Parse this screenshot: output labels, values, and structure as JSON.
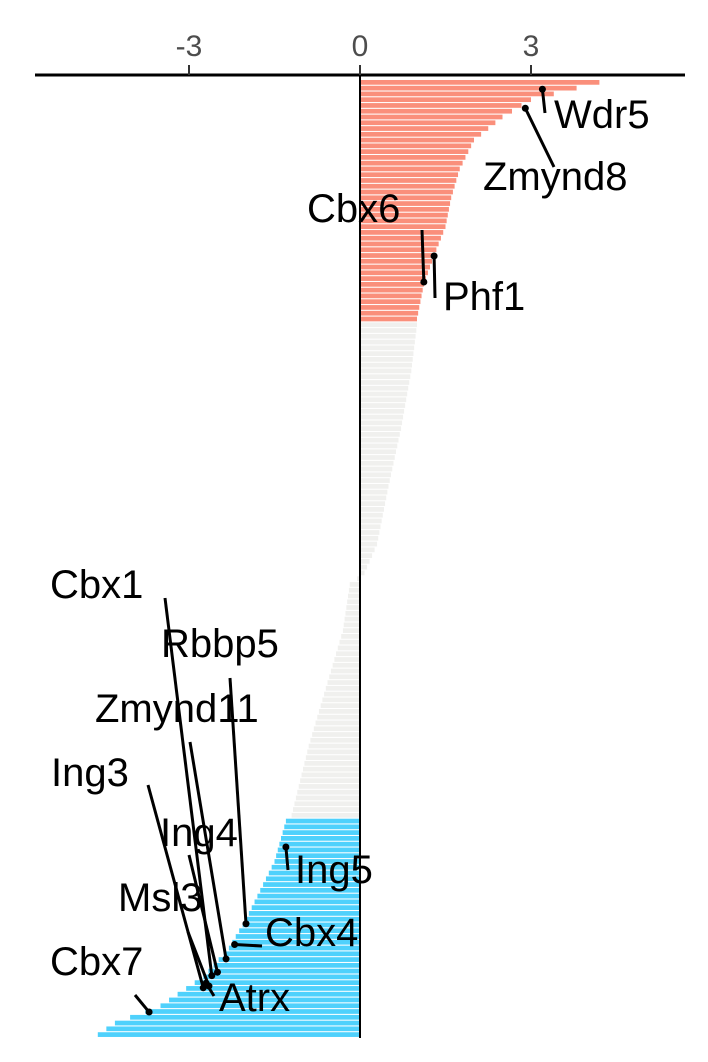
{
  "chart_data": {
    "type": "bar",
    "orientation": "horizontal",
    "xlim": [
      -5.8,
      5.7
    ],
    "x_ticks": [
      -3,
      0,
      3
    ],
    "x_tick_labels": [
      "-3",
      "0",
      "3"
    ],
    "bar_count": 166,
    "groups": [
      {
        "range": [
          0,
          42
        ],
        "color": "#FA8F7B"
      },
      {
        "range": [
          42,
          128
        ],
        "color": "#F0F0EE"
      },
      {
        "range": [
          128,
          166
        ],
        "color": "#4FD1FC"
      }
    ],
    "curve": [
      [
        0,
        4.2
      ],
      [
        3,
        3.0
      ],
      [
        6,
        2.5
      ],
      [
        10,
        2.0
      ],
      [
        15,
        1.75
      ],
      [
        20,
        1.6
      ],
      [
        25,
        1.5
      ],
      [
        30,
        1.3
      ],
      [
        35,
        1.12
      ],
      [
        41,
        1.0
      ],
      [
        42,
        1.0
      ],
      [
        50,
        0.9
      ],
      [
        60,
        0.72
      ],
      [
        70,
        0.5
      ],
      [
        80,
        0.3
      ],
      [
        85,
        0.08
      ],
      [
        87,
        -0.18
      ],
      [
        95,
        -0.3
      ],
      [
        105,
        -0.6
      ],
      [
        115,
        -0.9
      ],
      [
        127,
        -1.2
      ],
      [
        128,
        -1.3
      ],
      [
        135,
        -1.5
      ],
      [
        140,
        -1.75
      ],
      [
        145,
        -2.0
      ],
      [
        150,
        -2.3
      ],
      [
        155,
        -2.75
      ],
      [
        160,
        -3.5
      ],
      [
        163,
        -4.3
      ],
      [
        165,
        -4.6
      ]
    ],
    "annotations": [
      {
        "gene": "Wdr5",
        "point": [
          3.2,
          1.6
        ]
      },
      {
        "gene": "Zmynd8",
        "point": [
          2.9,
          4.9
        ]
      },
      {
        "gene": "Cbx6",
        "point": [
          1.12,
          35.0
        ]
      },
      {
        "gene": "Phf1",
        "point": [
          1.3,
          30.5
        ]
      },
      {
        "gene": "Cbx1",
        "point": [
          -2.6,
          155.2
        ]
      },
      {
        "gene": "Rbbp5",
        "point": [
          -2.0,
          146.2
        ]
      },
      {
        "gene": "Zmynd11",
        "point": [
          -2.35,
          152.3
        ]
      },
      {
        "gene": "Ing3",
        "point": [
          -2.75,
          157.3
        ]
      },
      {
        "gene": "Ing4",
        "point": [
          -2.5,
          154.6
        ]
      },
      {
        "gene": "Ing5",
        "point": [
          -1.3,
          132.9
        ]
      },
      {
        "gene": "Cbx4",
        "point": [
          -2.2,
          149.8
        ]
      },
      {
        "gene": "Msl3",
        "point": [
          -2.65,
          157.0
        ]
      },
      {
        "gene": "Atrx",
        "point": [
          -2.7,
          156.5
        ]
      },
      {
        "gene": "Cbx7",
        "point": [
          -3.7,
          161.5
        ]
      }
    ]
  }
}
